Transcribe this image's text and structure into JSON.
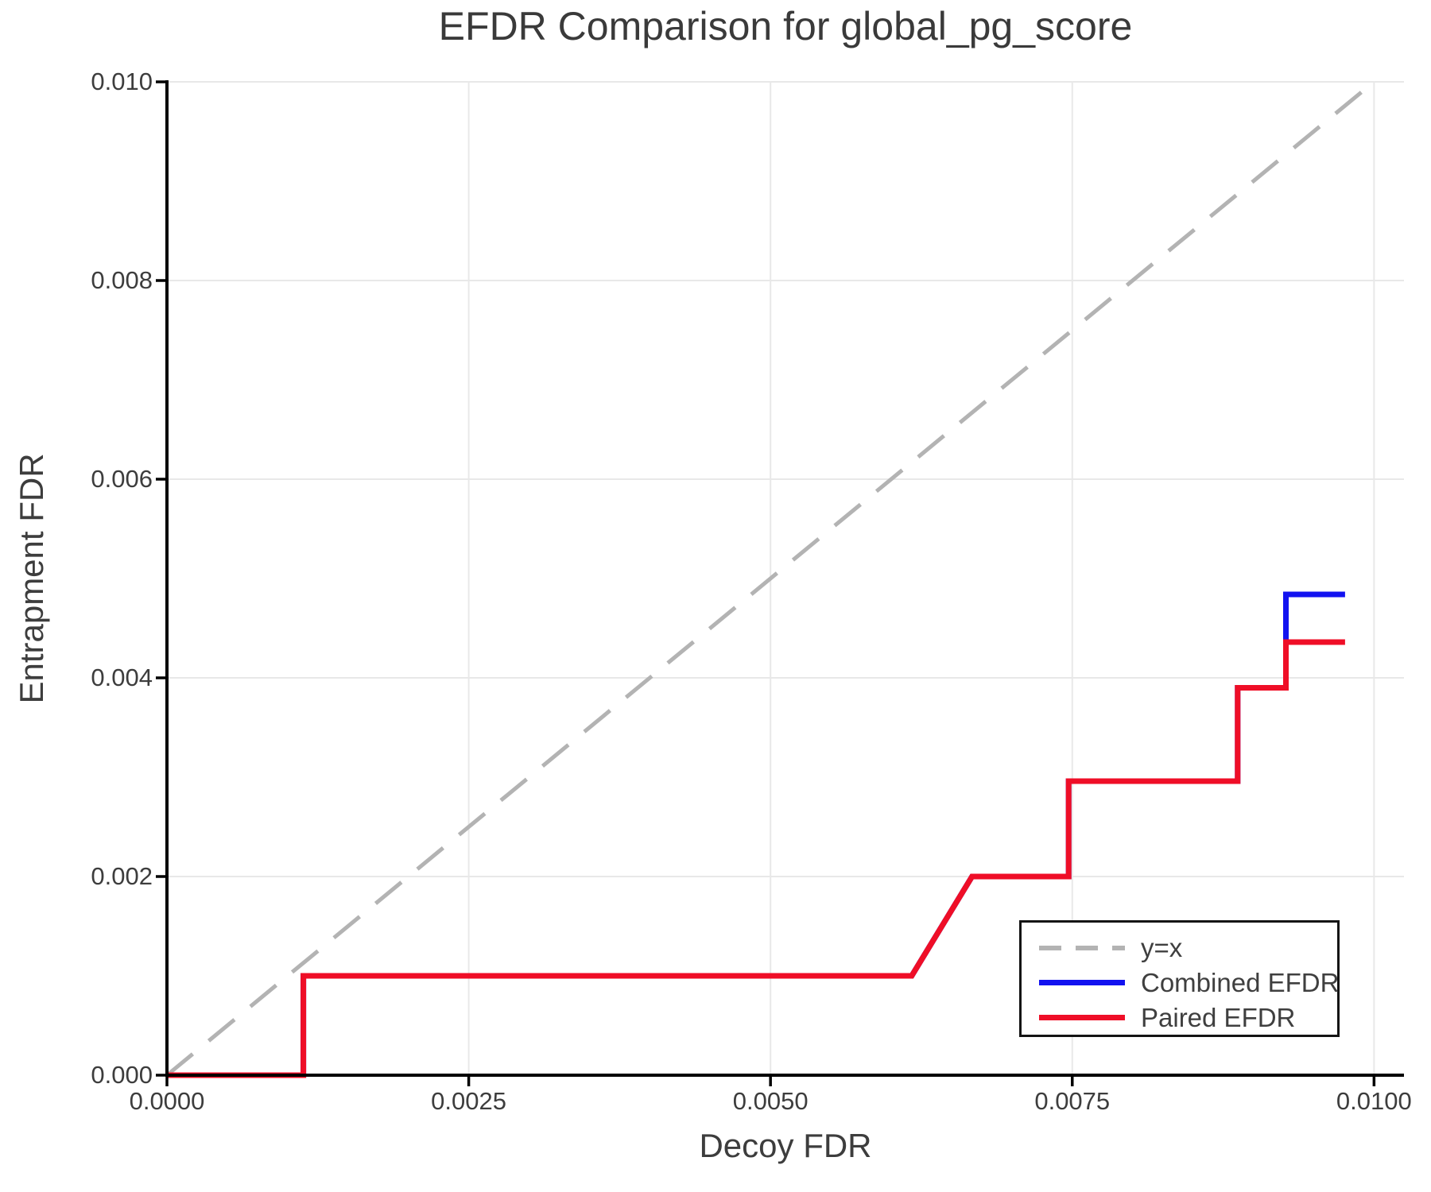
{
  "chart_data": {
    "type": "line",
    "title": "EFDR Comparison for global_pg_score",
    "xlabel": "Decoy FDR",
    "ylabel": "Entrapment FDR",
    "xlim": [
      0,
      0.010248
    ],
    "ylim": [
      0,
      0.01
    ],
    "grid": true,
    "legend_position": "lower right",
    "x_ticks": {
      "values": [
        0,
        0.0025,
        0.005,
        0.0075,
        0.01
      ],
      "labels": [
        "0.0000",
        "0.0025",
        "0.0050",
        "0.0075",
        "0.0100"
      ]
    },
    "y_ticks": {
      "values": [
        0,
        0.002,
        0.004,
        0.006,
        0.008,
        0.01
      ],
      "labels": [
        "0.000",
        "0.002",
        "0.004",
        "0.006",
        "0.008",
        "0.010"
      ]
    },
    "series": [
      {
        "name": "y=x",
        "style": "dashed",
        "color": "#b3b3b3",
        "width": 5,
        "points": [
          [
            0,
            0
          ],
          [
            0.01,
            0.01
          ]
        ]
      },
      {
        "name": "Combined EFDR",
        "style": "solid",
        "color": "#1212f0",
        "width": 7,
        "points": [
          [
            0,
            0
          ],
          [
            0.00113,
            0
          ],
          [
            0.00113,
            0.001
          ],
          [
            0.00617,
            0.001
          ],
          [
            0.00667,
            0.002
          ],
          [
            0.00747,
            0.002
          ],
          [
            0.00747,
            0.00296
          ],
          [
            0.00887,
            0.00296
          ],
          [
            0.00887,
            0.0039
          ],
          [
            0.00927,
            0.0039
          ],
          [
            0.00927,
            0.00484
          ],
          [
            0.00976,
            0.00484
          ]
        ]
      },
      {
        "name": "Paired EFDR",
        "style": "solid",
        "color": "#ef0e27",
        "width": 7,
        "points": [
          [
            0,
            0
          ],
          [
            0.00113,
            0
          ],
          [
            0.00113,
            0.001
          ],
          [
            0.00617,
            0.001
          ],
          [
            0.00667,
            0.002
          ],
          [
            0.00747,
            0.002
          ],
          [
            0.00747,
            0.00296
          ],
          [
            0.00887,
            0.00296
          ],
          [
            0.00887,
            0.0039
          ],
          [
            0.00927,
            0.0039
          ],
          [
            0.00927,
            0.00436
          ],
          [
            0.00976,
            0.00436
          ]
        ]
      }
    ]
  }
}
